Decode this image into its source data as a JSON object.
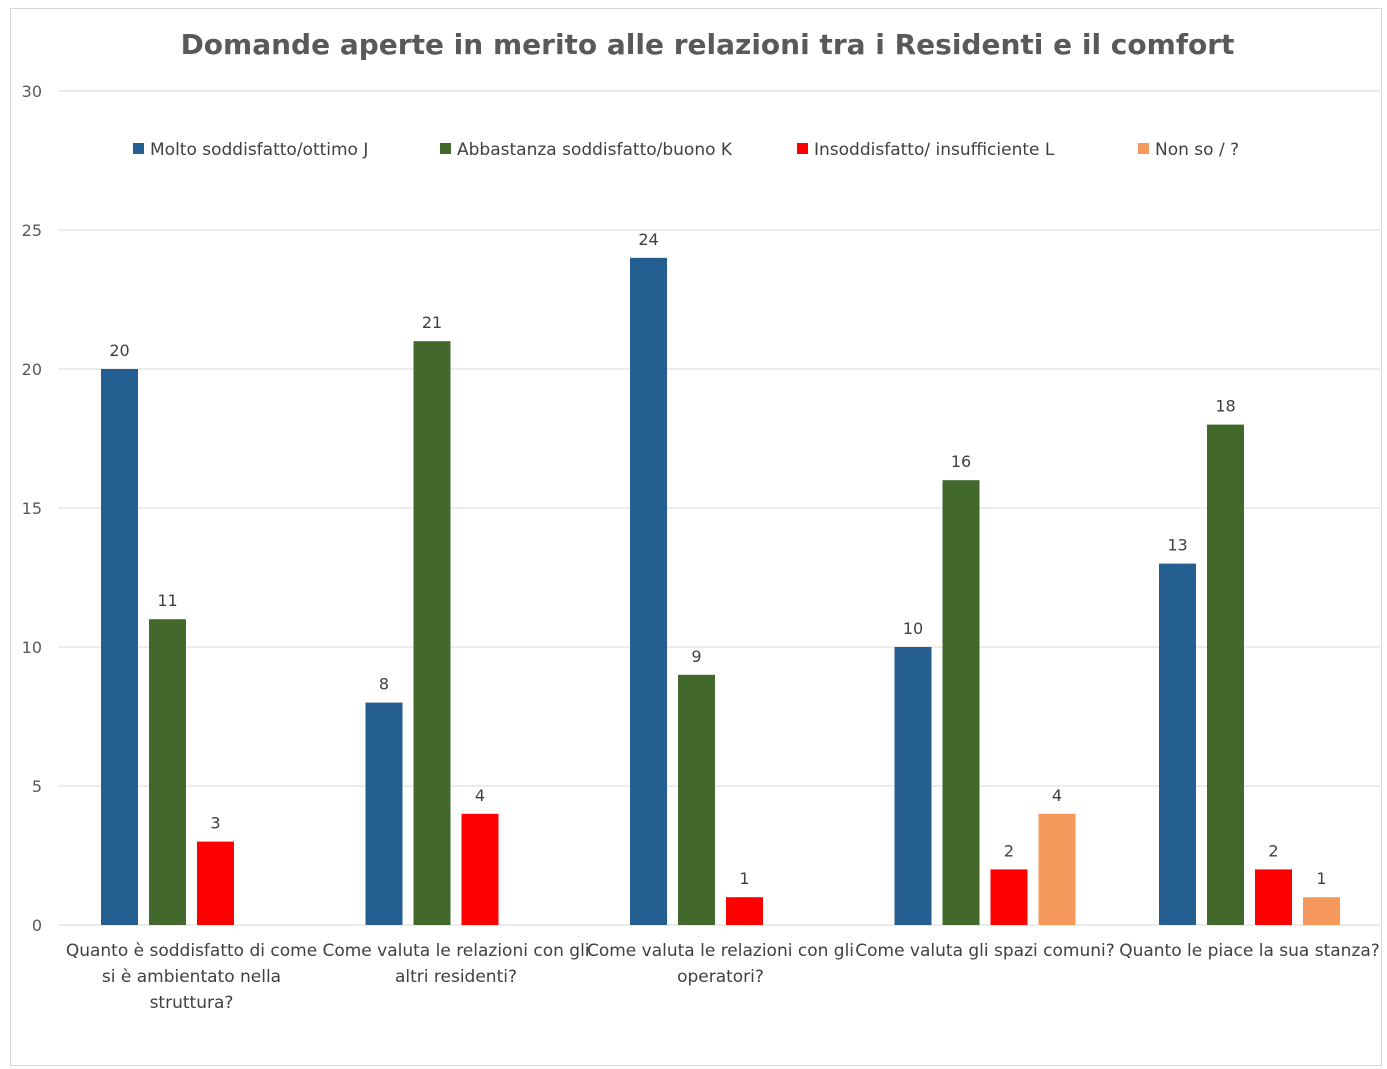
{
  "chart_data": {
    "type": "bar",
    "title": "Domande aperte  in merito alle relazioni tra i Residenti e il comfort",
    "xlabel": "",
    "ylabel": "",
    "ylim": [
      0,
      30
    ],
    "yticks": [
      0,
      5,
      10,
      15,
      20,
      25,
      30
    ],
    "grid": true,
    "legend_position": "top",
    "categories": [
      "Quanto è soddisfatto di come si è ambientato nella struttura?",
      "Come valuta le relazioni con gli altri residenti?",
      "Come valuta le relazioni con gli operatori?",
      "Come valuta gli spazi comuni?",
      "Quanto le piace la sua stanza?"
    ],
    "category_label_lines": [
      [
        "Quanto è soddisfatto di come",
        "si è ambientato nella",
        "struttura?"
      ],
      [
        "Come valuta le relazioni con gli",
        "altri residenti?"
      ],
      [
        "Come valuta le relazioni con gli",
        "operatori?"
      ],
      [
        "Come valuta gli spazi comuni?"
      ],
      [
        "Quanto le piace la sua stanza?"
      ]
    ],
    "series": [
      {
        "name": "Molto soddisfatto/ottimo J",
        "color": "#255e91",
        "values": [
          20,
          8,
          24,
          10,
          13
        ]
      },
      {
        "name": "Abbastanza soddisfatto/buono K",
        "color": "#43682b",
        "values": [
          11,
          21,
          9,
          16,
          18
        ]
      },
      {
        "name": "Insoddisfatto/ insufficiente L",
        "color": "#ff0000",
        "values": [
          3,
          4,
          1,
          2,
          2
        ]
      },
      {
        "name": "Non so / ?",
        "color": "#f4995b",
        "values": [
          null,
          null,
          null,
          4,
          1
        ]
      }
    ]
  }
}
